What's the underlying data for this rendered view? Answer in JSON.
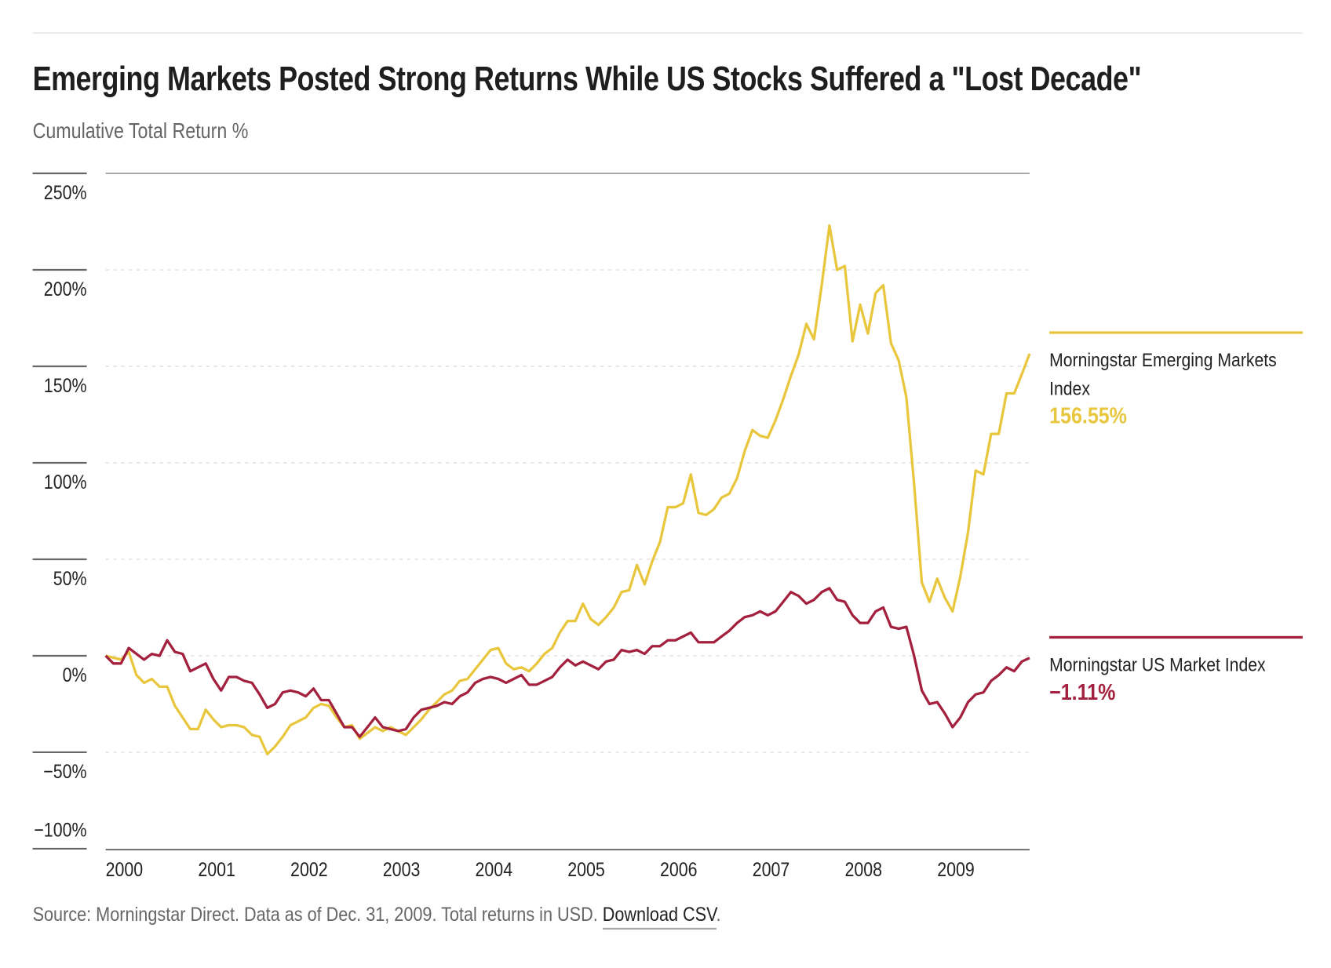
{
  "header": {
    "title": "Emerging Markets Posted Strong Returns While US Stocks Suffered a \"Lost Decade\"",
    "subtitle": "Cumulative Total Return %"
  },
  "footer": {
    "source": "Source: Morningstar Direct. Data as of Dec. 31, 2009. Total returns in USD.",
    "download_label": "Download CSV",
    "trailing": "."
  },
  "legend": [
    {
      "name": "Morningstar Emerging Markets Index",
      "value": "156.55%",
      "color": "#E8C73F"
    },
    {
      "name": "Morningstar US Market Index",
      "value": "−1.11%",
      "color": "#A3213E"
    }
  ],
  "chart_data": {
    "type": "line",
    "title": "Emerging Markets Posted Strong Returns While US Stocks Suffered a \"Lost Decade\"",
    "ylabel": "Cumulative Total Return %",
    "ylim": [
      -100,
      250
    ],
    "yticks": [
      250,
      200,
      150,
      100,
      50,
      0,
      -50,
      -100
    ],
    "ytick_labels": [
      "250%",
      "200%",
      "150%",
      "100%",
      "50%",
      "0%",
      "−50%",
      "−100%"
    ],
    "xtick_labels": [
      "2000",
      "2001",
      "2002",
      "2003",
      "2004",
      "2005",
      "2006",
      "2007",
      "2008",
      "2009"
    ],
    "x_range": [
      "1999-12",
      "2009-12"
    ],
    "x_frequency": "monthly",
    "grid": "horizontal dashed",
    "legend_position": "right",
    "series": [
      {
        "name": "Morningstar Emerging Markets Index",
        "color": "#E8C73F",
        "values": [
          0,
          -1,
          -2,
          2,
          -10,
          -14,
          -12,
          -16,
          -16,
          -26,
          -32,
          -38,
          -38,
          -28,
          -33,
          -37,
          -36,
          -36,
          -37,
          -41,
          -42,
          -51,
          -47,
          -42,
          -36,
          -34,
          -32,
          -27,
          -25,
          -26,
          -32,
          -37,
          -36,
          -43,
          -40,
          -37,
          -39,
          -37,
          -39,
          -41,
          -37,
          -33,
          -28,
          -24,
          -20,
          -18,
          -13,
          -12,
          -7,
          -2,
          3,
          4,
          -4,
          -7,
          -6,
          -8,
          -4,
          1,
          4,
          12,
          18,
          18,
          27,
          19,
          16,
          20,
          25,
          33,
          34,
          47,
          37,
          49,
          59,
          77,
          77,
          79,
          94,
          74,
          73,
          76,
          82,
          84,
          92,
          106,
          117,
          114,
          113,
          122,
          133,
          145,
          156,
          172,
          164,
          192,
          223,
          200,
          202,
          163,
          182,
          167,
          188,
          192,
          162,
          153,
          134,
          89,
          38,
          28,
          40,
          30,
          23,
          41,
          64,
          96,
          94,
          115,
          115,
          136,
          136,
          146,
          156.55
        ]
      },
      {
        "name": "Morningstar US Market Index",
        "color": "#A3213E",
        "values": [
          0,
          -4,
          -4,
          4,
          1,
          -2,
          1,
          0,
          8,
          2,
          1,
          -8,
          -6,
          -4,
          -12,
          -18,
          -11,
          -11,
          -13,
          -14,
          -20,
          -27,
          -25,
          -19,
          -18,
          -19,
          -21,
          -17,
          -23,
          -23,
          -30,
          -37,
          -37,
          -42,
          -37,
          -32,
          -37,
          -38,
          -39,
          -38,
          -32,
          -28,
          -27,
          -26,
          -24,
          -25,
          -21,
          -19,
          -14,
          -12,
          -11,
          -12,
          -14,
          -12,
          -10,
          -15,
          -15,
          -13,
          -11,
          -6,
          -2,
          -5,
          -3,
          -5,
          -7,
          -3,
          -2,
          3,
          2,
          3,
          1,
          5,
          5,
          8,
          8,
          10,
          12,
          7,
          7,
          7,
          10,
          13,
          17,
          20,
          21,
          23,
          21,
          23,
          28,
          33,
          31,
          27,
          29,
          33,
          35,
          29,
          28,
          21,
          17,
          17,
          23,
          25,
          15,
          14,
          15,
          0,
          -18,
          -25,
          -24,
          -30,
          -37,
          -32,
          -24,
          -20,
          -19,
          -13,
          -10,
          -6,
          -8,
          -3,
          -1.11
        ]
      }
    ]
  }
}
